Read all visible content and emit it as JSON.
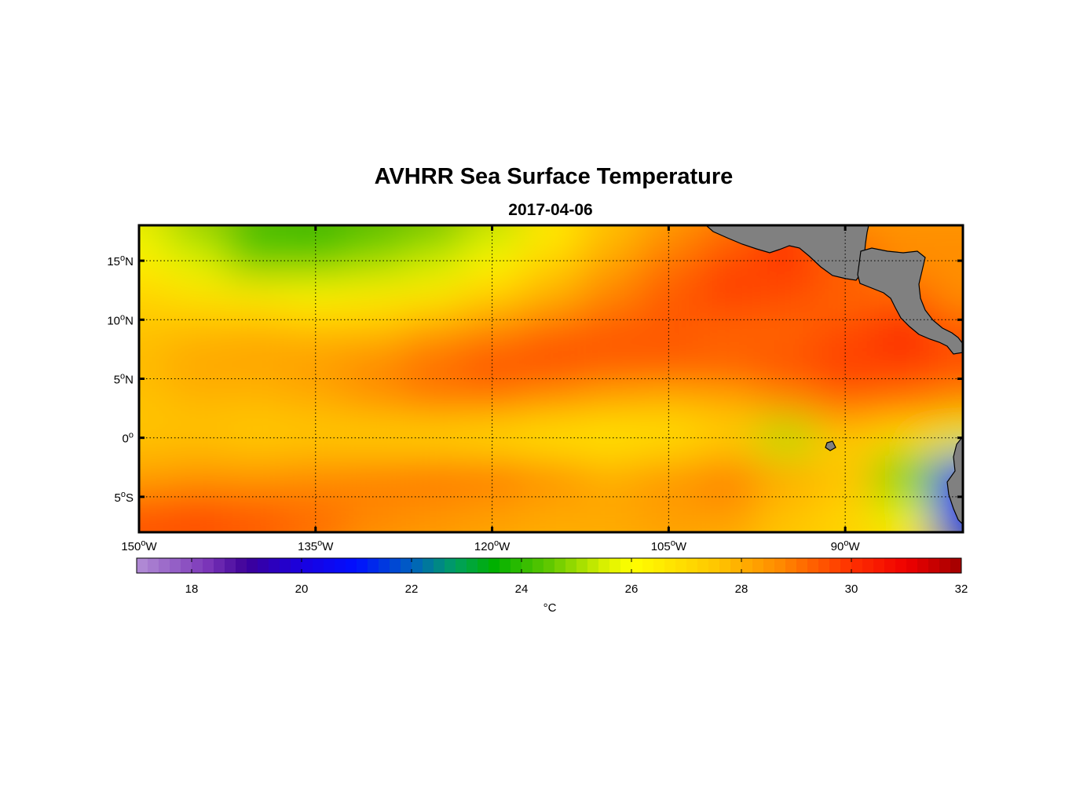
{
  "title": "AVHRR Sea Surface Temperature",
  "subtitle": "2017-04-06",
  "map": {
    "extent": {
      "lon_min": -150,
      "lon_max": -80,
      "lat_min": -8,
      "lat_max": 18
    },
    "lat_ticks": [
      {
        "value": 15,
        "num": "15",
        "hemi": "N"
      },
      {
        "value": 10,
        "num": "10",
        "hemi": "N"
      },
      {
        "value": 5,
        "num": "5",
        "hemi": "N"
      },
      {
        "value": 0,
        "num": "0",
        "hemi": ""
      },
      {
        "value": -5,
        "num": "5",
        "hemi": "S"
      }
    ],
    "lon_ticks": [
      {
        "value": -150,
        "num": "150",
        "hemi": "W"
      },
      {
        "value": -135,
        "num": "135",
        "hemi": "W"
      },
      {
        "value": -120,
        "num": "120",
        "hemi": "W"
      },
      {
        "value": -105,
        "num": "105",
        "hemi": "W"
      },
      {
        "value": -90,
        "num": "90",
        "hemi": "W"
      }
    ],
    "degree_symbol": "o",
    "land_color": "#808080",
    "gridline_style": "dotted"
  },
  "colorbar": {
    "min": 17,
    "max": 32,
    "ticks": [
      "18",
      "20",
      "22",
      "24",
      "26",
      "28",
      "30",
      "32"
    ],
    "tick_values": [
      18,
      20,
      22,
      24,
      26,
      28,
      30,
      32
    ],
    "unit_label": "°C",
    "stops": [
      {
        "value": 17,
        "color": "#b38fd6"
      },
      {
        "value": 18.3,
        "color": "#7a35b8"
      },
      {
        "value": 19,
        "color": "#3d0099"
      },
      {
        "value": 20,
        "color": "#1a00e0"
      },
      {
        "value": 21,
        "color": "#0010ff"
      },
      {
        "value": 22,
        "color": "#0060c0"
      },
      {
        "value": 22.8,
        "color": "#00a060"
      },
      {
        "value": 23.5,
        "color": "#00b000"
      },
      {
        "value": 24.5,
        "color": "#60c800"
      },
      {
        "value": 25.5,
        "color": "#d8f000"
      },
      {
        "value": 26,
        "color": "#ffff00"
      },
      {
        "value": 27.5,
        "color": "#ffc800"
      },
      {
        "value": 28.7,
        "color": "#ff8a00"
      },
      {
        "value": 30,
        "color": "#ff3000"
      },
      {
        "value": 31,
        "color": "#f00000"
      },
      {
        "value": 32,
        "color": "#a00000"
      }
    ]
  },
  "chart_data": {
    "type": "heatmap",
    "title": "AVHRR Sea Surface Temperature",
    "subtitle": "2017-04-06",
    "variable": "sea surface temperature",
    "unit": "°C",
    "x_range": [
      -150,
      -80
    ],
    "y_range": [
      -8,
      18
    ],
    "x_ticks": [
      -150,
      -135,
      -120,
      -105,
      -90
    ],
    "y_ticks": [
      -5,
      0,
      5,
      10,
      15
    ],
    "lon_grid": [
      -150,
      -145,
      -140,
      -135,
      -130,
      -125,
      -120,
      -115,
      -110,
      -105,
      -100,
      -95,
      -90,
      -85,
      -80
    ],
    "lat_grid": [
      18,
      15,
      12,
      9,
      6,
      3,
      0,
      -3,
      -6,
      -8
    ],
    "sst_grid": [
      [
        25.6,
        24.8,
        24.0,
        23.8,
        24.0,
        24.4,
        25.2,
        26.4,
        27.6,
        28.4,
        null,
        null,
        null,
        null,
        28.6
      ],
      [
        26.4,
        25.6,
        24.6,
        24.6,
        25.0,
        25.4,
        26.2,
        27.2,
        28.2,
        29.0,
        29.6,
        29.9,
        null,
        null,
        28.6
      ],
      [
        27.2,
        26.8,
        26.4,
        26.2,
        26.4,
        26.6,
        27.4,
        28.0,
        28.8,
        29.4,
        29.8,
        29.6,
        29.2,
        null,
        28.6
      ],
      [
        27.6,
        27.8,
        28.0,
        27.8,
        27.8,
        28.4,
        28.8,
        29.2,
        29.4,
        29.4,
        29.2,
        29.2,
        29.6,
        30.2,
        null
      ],
      [
        27.8,
        28.2,
        28.2,
        28.4,
        28.8,
        29.2,
        29.6,
        29.6,
        29.4,
        29.4,
        29.4,
        29.6,
        29.8,
        29.8,
        29.6
      ],
      [
        27.6,
        27.8,
        27.8,
        28.0,
        28.4,
        28.8,
        28.8,
        28.4,
        28.0,
        27.8,
        28.0,
        28.6,
        29.2,
        29.0,
        28.6
      ],
      [
        27.6,
        27.6,
        27.4,
        27.4,
        27.2,
        27.0,
        26.8,
        26.6,
        26.6,
        26.8,
        27.2,
        25.2,
        27.4,
        26.8,
        null
      ],
      [
        28.2,
        28.4,
        28.4,
        28.6,
        28.8,
        29.0,
        29.0,
        28.6,
        28.0,
        28.4,
        28.8,
        28.0,
        27.6,
        24.6,
        21.4
      ],
      [
        29.2,
        29.4,
        29.2,
        29.0,
        28.8,
        28.6,
        28.4,
        28.2,
        28.2,
        28.4,
        28.6,
        27.8,
        27.4,
        25.4,
        21.0
      ],
      [
        29.8,
        29.8,
        29.6,
        29.2,
        28.6,
        28.4,
        28.2,
        28.0,
        28.0,
        28.2,
        28.0,
        27.4,
        27.0,
        26.4,
        21.8
      ]
    ],
    "colorbar": {
      "min": 17,
      "max": 32,
      "label": "°C",
      "ticks": [
        18,
        20,
        22,
        24,
        26,
        28,
        30,
        32
      ]
    }
  }
}
